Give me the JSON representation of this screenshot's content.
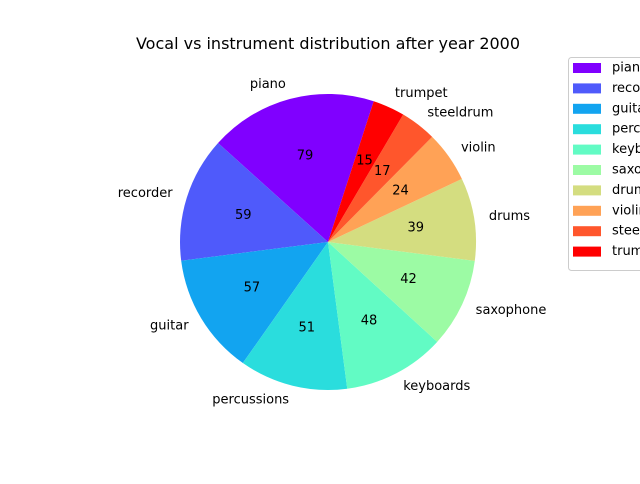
{
  "chart_data": {
    "type": "pie",
    "title": "Vocal vs instrument distribution after year 2000",
    "categories": [
      "piano",
      "recorder",
      "guitar",
      "percussions",
      "keyboards",
      "saxophone",
      "drums",
      "violin",
      "steeldrum",
      "trumpet"
    ],
    "values": [
      79,
      59,
      57,
      51,
      48,
      42,
      39,
      24,
      17,
      15
    ],
    "colors": [
      "#8000ff",
      "#4f5afb",
      "#12a4f0",
      "#2adddd",
      "#62fbc4",
      "#9cfba4",
      "#d4dd80",
      "#ffa256",
      "#ff562c",
      "#ff0000"
    ],
    "start_angle_deg": 72,
    "direction": "counterclockwise",
    "legend": {
      "placement": "upper-right, partially outside the figure",
      "entries": [
        "piano",
        "recorder",
        "guitar",
        "percussions",
        "keyboards",
        "saxophone",
        "drums",
        "violin",
        "steeldrum",
        "trumpet"
      ]
    }
  }
}
